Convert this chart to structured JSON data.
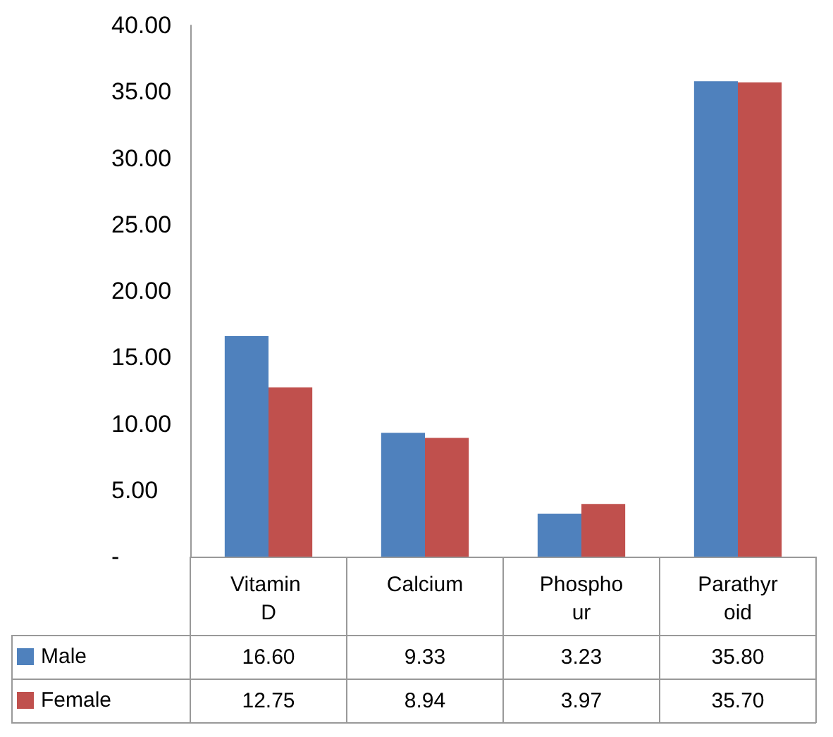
{
  "chart_data": {
    "type": "bar",
    "categories": [
      "Vitamin D",
      "Calcium",
      "Phosphour",
      "Parathyroid"
    ],
    "series": [
      {
        "name": "Male",
        "color": "#4f81bd",
        "values": [
          16.6,
          9.33,
          3.23,
          35.8
        ],
        "value_labels": [
          "16.60",
          "9.33",
          "3.23",
          "35.80"
        ]
      },
      {
        "name": "Female",
        "color": "#c0504d",
        "values": [
          12.75,
          8.94,
          3.97,
          35.7
        ],
        "value_labels": [
          "12.75",
          "8.94",
          "3.97",
          "35.70"
        ]
      }
    ],
    "ylim": [
      0,
      40
    ],
    "yticks": [
      {
        "value": 0,
        "label": "-"
      },
      {
        "value": 5,
        "label": "5.00"
      },
      {
        "value": 10,
        "label": "10.00"
      },
      {
        "value": 15,
        "label": "15.00"
      },
      {
        "value": 20,
        "label": "20.00"
      },
      {
        "value": 25,
        "label": "25.00"
      },
      {
        "value": 30,
        "label": "30.00"
      },
      {
        "value": 35,
        "label": "35.00"
      },
      {
        "value": 40,
        "label": "40.00"
      }
    ],
    "grid": false,
    "legend": "bottom left"
  }
}
